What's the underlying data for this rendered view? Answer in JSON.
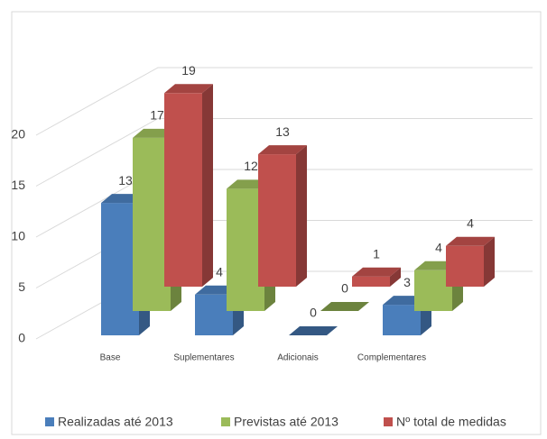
{
  "chart_data": {
    "type": "bar3d",
    "categories": [
      "Base",
      "Suplementares",
      "Adicionais",
      "Complementares"
    ],
    "series": [
      {
        "name": "Realizadas até 2013",
        "color": "#4a7ebb",
        "values": [
          13,
          4,
          0,
          3
        ]
      },
      {
        "name": "Previstas até 2013",
        "color": "#9bbb59",
        "values": [
          17,
          12,
          0,
          4
        ]
      },
      {
        "name": "Nº total de medidas",
        "color": "#c0504d",
        "values": [
          19,
          13,
          1,
          4
        ]
      }
    ],
    "ylim": [
      0,
      20
    ],
    "yticks": [
      0,
      5,
      10,
      15,
      20
    ],
    "grid": true,
    "legend": "bottom"
  }
}
